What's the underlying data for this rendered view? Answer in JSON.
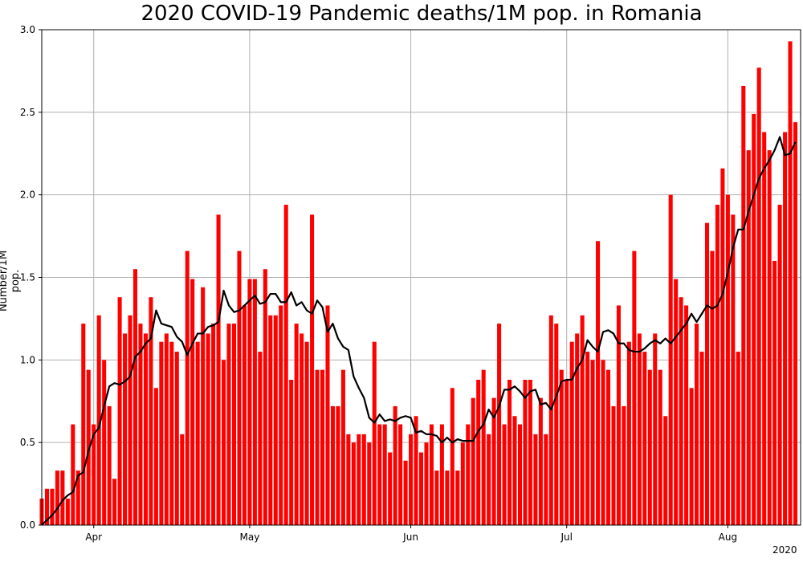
{
  "chart_data": {
    "type": "bar",
    "title": "2020 COVID-19 Pandemic deaths/1M pop. in Romania",
    "ylabel": "Number/1M pop.",
    "xlabel": "",
    "year_label": "2020",
    "ylim": [
      0,
      3.0
    ],
    "yticks": [
      "0.0",
      "0.5",
      "1.0",
      "1.5",
      "2.0",
      "2.5",
      "3.0"
    ],
    "x_start": "2020-03-22",
    "x_end": "2020-08-15",
    "xticks": [
      {
        "label": "Apr",
        "date": "2020-04-01"
      },
      {
        "label": "May",
        "date": "2020-05-01"
      },
      {
        "label": "Jun",
        "date": "2020-06-01"
      },
      {
        "label": "Jul",
        "date": "2020-07-01"
      },
      {
        "label": "Aug",
        "date": "2020-08-01"
      }
    ],
    "grid": true,
    "colors": {
      "bars": "#ff0000",
      "line": "#000000",
      "grid": "#b0b0b0"
    },
    "start_date": "2020-03-22",
    "series": [
      {
        "type": "bar",
        "values": [
          0.16,
          0.22,
          0.22,
          0.33,
          0.33,
          0.16,
          0.61,
          0.33,
          1.22,
          0.94,
          0.61,
          1.27,
          1.0,
          0.72,
          0.28,
          1.38,
          1.16,
          1.27,
          1.55,
          1.22,
          1.16,
          1.38,
          0.83,
          1.11,
          1.16,
          1.11,
          1.05,
          0.55,
          1.66,
          1.49,
          1.11,
          1.44,
          1.16,
          1.22,
          1.88,
          1.0,
          1.22,
          1.22,
          1.66,
          1.33,
          1.49,
          1.49,
          1.05,
          1.55,
          1.27,
          1.27,
          1.33,
          1.94,
          0.88,
          1.22,
          1.16,
          1.11,
          1.88,
          0.94,
          0.94,
          1.33,
          0.72,
          0.72,
          0.94,
          0.55,
          0.5,
          0.55,
          0.55,
          0.5,
          1.11,
          0.61,
          0.61,
          0.44,
          0.72,
          0.61,
          0.39,
          0.55,
          0.66,
          0.44,
          0.5,
          0.61,
          0.33,
          0.61,
          0.33,
          0.83,
          0.33,
          0.5,
          0.61,
          0.77,
          0.88,
          0.94,
          0.55,
          0.77,
          1.22,
          0.61,
          0.88,
          0.66,
          0.61,
          0.88,
          0.88,
          0.55,
          0.77,
          0.55,
          1.27,
          1.22,
          0.94,
          0.88,
          1.11,
          1.16,
          1.27,
          1.05,
          1.0,
          1.72,
          1.0,
          0.94,
          0.72,
          1.33,
          0.72,
          1.11,
          1.66,
          1.16,
          1.05,
          0.94,
          1.16,
          0.94,
          0.66,
          2.0,
          1.49,
          1.38,
          1.33,
          0.83,
          1.22,
          1.05,
          1.83,
          1.66,
          1.94,
          2.16,
          2.0,
          1.88,
          1.05,
          2.66,
          2.27,
          2.49,
          2.77,
          2.38,
          2.27,
          1.6,
          1.94,
          2.38,
          2.93,
          2.44
        ]
      },
      {
        "type": "line",
        "values": [
          0.0,
          0.03,
          0.06,
          0.1,
          0.15,
          0.18,
          0.2,
          0.3,
          0.32,
          0.45,
          0.55,
          0.59,
          0.72,
          0.84,
          0.86,
          0.85,
          0.87,
          0.9,
          1.02,
          1.05,
          1.1,
          1.13,
          1.3,
          1.22,
          1.21,
          1.2,
          1.14,
          1.11,
          1.03,
          1.1,
          1.16,
          1.16,
          1.2,
          1.21,
          1.23,
          1.42,
          1.33,
          1.29,
          1.3,
          1.33,
          1.36,
          1.39,
          1.34,
          1.35,
          1.4,
          1.4,
          1.35,
          1.35,
          1.41,
          1.33,
          1.35,
          1.3,
          1.28,
          1.36,
          1.32,
          1.17,
          1.22,
          1.13,
          1.08,
          1.06,
          0.9,
          0.83,
          0.77,
          0.65,
          0.62,
          0.67,
          0.63,
          0.64,
          0.63,
          0.65,
          0.66,
          0.65,
          0.56,
          0.57,
          0.55,
          0.55,
          0.54,
          0.5,
          0.53,
          0.5,
          0.52,
          0.51,
          0.51,
          0.51,
          0.57,
          0.61,
          0.7,
          0.65,
          0.72,
          0.82,
          0.82,
          0.84,
          0.81,
          0.77,
          0.81,
          0.82,
          0.73,
          0.74,
          0.7,
          0.78,
          0.87,
          0.88,
          0.88,
          0.95,
          1.0,
          1.12,
          1.08,
          1.05,
          1.17,
          1.18,
          1.16,
          1.1,
          1.1,
          1.06,
          1.05,
          1.05,
          1.07,
          1.1,
          1.12,
          1.1,
          1.13,
          1.1,
          1.14,
          1.18,
          1.22,
          1.28,
          1.23,
          1.28,
          1.33,
          1.31,
          1.33,
          1.4,
          1.53,
          1.68,
          1.79,
          1.79,
          1.9,
          2.0,
          2.1,
          2.16,
          2.21,
          2.27,
          2.35,
          2.24,
          2.25,
          2.32
        ]
      }
    ]
  }
}
